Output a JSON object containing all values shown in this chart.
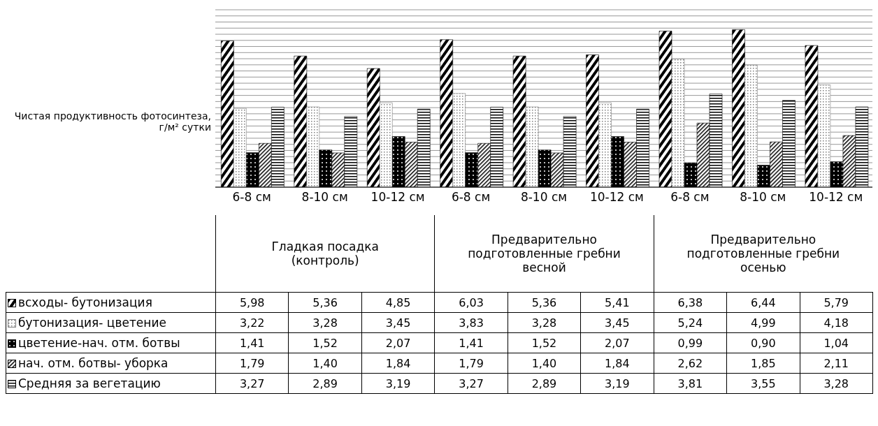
{
  "chart_data": {
    "type": "bar",
    "ylabel": "Чистая продуктивность фотосинтеза, г/м² сутки",
    "categories": [
      "6-8 см",
      "8-10 см",
      "10-12 см",
      "6-8 см",
      "8-10 см",
      "10-12 см",
      "6-8 см",
      "8-10 см",
      "10-12 см"
    ],
    "annotations": [
      "Гладкая посадка (контроль)",
      "Предварительно подготовленные гребни весной",
      "Предварительно подготовленные гребни осенью"
    ],
    "series": [
      {
        "name": "всходы- бутонизация",
        "color": "#000000",
        "values": [
          5.98,
          5.36,
          4.85,
          6.03,
          5.36,
          5.41,
          6.38,
          6.44,
          5.79
        ],
        "value_labels": [
          "5,98",
          "5,36",
          "4,85",
          "6,03",
          "5,36",
          "5,41",
          "6,38",
          "6,44",
          "5,79"
        ]
      },
      {
        "name": "бутонизация- цветение",
        "color": "#7f7f7f",
        "values": [
          3.22,
          3.28,
          3.45,
          3.83,
          3.28,
          3.45,
          5.24,
          4.99,
          4.18
        ],
        "value_labels": [
          "3,22",
          "3,28",
          "3,45",
          "3,83",
          "3,28",
          "3,45",
          "5,24",
          "4,99",
          "4,18"
        ]
      },
      {
        "name": "цветение-нач. отм. ботвы",
        "color": "#000000",
        "values": [
          1.41,
          1.52,
          2.07,
          1.41,
          1.52,
          2.07,
          0.99,
          0.9,
          1.04
        ],
        "value_labels": [
          "1,41",
          "1,52",
          "2,07",
          "1,41",
          "1,52",
          "2,07",
          "0,99",
          "0,90",
          "1,04"
        ]
      },
      {
        "name": "нач. отм. ботвы- уборка",
        "color": "#000000",
        "values": [
          1.79,
          1.4,
          1.84,
          1.79,
          1.4,
          1.84,
          2.62,
          1.85,
          2.11
        ],
        "value_labels": [
          "1,79",
          "1,40",
          "1,84",
          "1,79",
          "1,40",
          "1,84",
          "2,62",
          "1,85",
          "2,11"
        ]
      },
      {
        "name": "Средняя за вегетацию",
        "color": "#000000",
        "values": [
          3.27,
          2.89,
          3.19,
          3.27,
          2.89,
          3.19,
          3.81,
          3.55,
          3.28
        ],
        "value_labels": [
          "3,27",
          "2,89",
          "3,19",
          "3,27",
          "2,89",
          "3,19",
          "3,81",
          "3,55",
          "3,28"
        ]
      }
    ],
    "grid": "y",
    "tick_labels": "x",
    "legend": "bottom"
  }
}
